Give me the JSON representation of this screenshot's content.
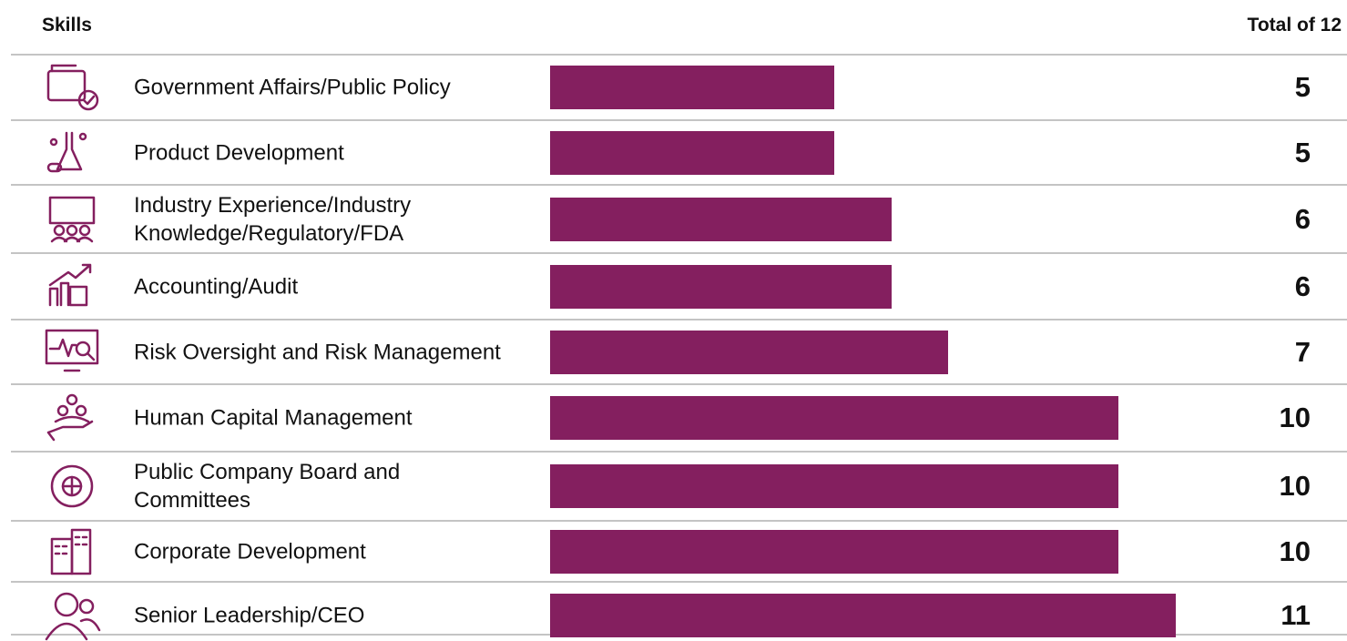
{
  "chart_data": {
    "type": "bar",
    "orientation": "horizontal",
    "header_left": "Skills",
    "header_right": "Total of 12",
    "categories": [
      "Government Affairs/Public Policy",
      "Product Development",
      "Industry Experience/Industry\nKnowledge/Regulatory/FDA",
      "Accounting/Audit",
      "Risk Oversight and Risk Management",
      "Human Capital Management",
      "Public Company Board and\nCommittees",
      "Corporate Development",
      "Senior Leadership/CEO"
    ],
    "values": [
      5,
      5,
      6,
      6,
      7,
      10,
      10,
      10,
      11
    ],
    "color": "#841f5f",
    "xlim": [
      0,
      12
    ]
  }
}
